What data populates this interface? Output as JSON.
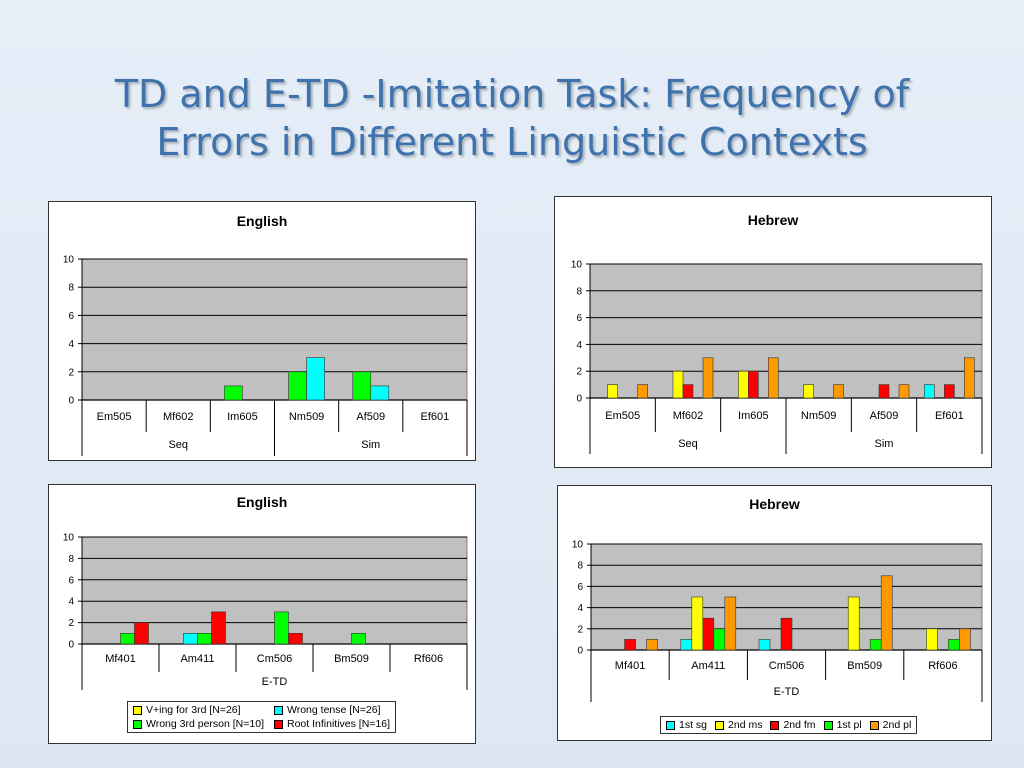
{
  "slide": {
    "title_line1": "TD and E-TD -Imitation Task: Frequency of",
    "title_line2": "Errors in Different Linguistic Contexts"
  },
  "chart_data": [
    {
      "type": "bar",
      "title": "English",
      "categories": [
        "Em505",
        "Mf602",
        "Im605",
        "Nm509",
        "Af509",
        "Ef601"
      ],
      "groups": [
        {
          "label": "Seq",
          "span": [
            0,
            2
          ]
        },
        {
          "label": "Sim",
          "span": [
            3,
            5
          ]
        }
      ],
      "ylim": [
        0,
        10
      ],
      "yticks": [
        0,
        2,
        4,
        6,
        8,
        10
      ],
      "grid": true,
      "series": [
        {
          "color": "#ffff00",
          "values": [
            0,
            0,
            0,
            0,
            0,
            0
          ]
        },
        {
          "color": "#00ff00",
          "values": [
            0,
            0,
            1,
            2,
            2,
            0
          ]
        },
        {
          "color": "#00ffff",
          "values": [
            0,
            0,
            0,
            3,
            1,
            0
          ]
        },
        {
          "color": "#ff0000",
          "values": [
            0,
            0,
            0,
            0,
            0,
            0
          ]
        }
      ]
    },
    {
      "type": "bar",
      "title": "Hebrew",
      "categories": [
        "Em505",
        "Mf602",
        "Im605",
        "Nm509",
        "Af509",
        "Ef601"
      ],
      "groups": [
        {
          "label": "Seq",
          "span": [
            0,
            2
          ]
        },
        {
          "label": "Sim",
          "span": [
            3,
            5
          ]
        }
      ],
      "ylim": [
        0,
        10
      ],
      "yticks": [
        0,
        2,
        4,
        6,
        8,
        10
      ],
      "grid": true,
      "series": [
        {
          "color": "#00ffff",
          "values": [
            0,
            0,
            0,
            0,
            0,
            1
          ]
        },
        {
          "color": "#ffff00",
          "values": [
            1,
            2,
            2,
            1,
            0,
            0
          ]
        },
        {
          "color": "#ff0000",
          "values": [
            0,
            1,
            2,
            0,
            1,
            1
          ]
        },
        {
          "color": "#00ff00",
          "values": [
            0,
            0,
            0,
            0,
            0,
            0
          ]
        },
        {
          "color": "#ff9900",
          "values": [
            1,
            3,
            3,
            1,
            1,
            3
          ]
        }
      ]
    },
    {
      "type": "bar",
      "title": "English",
      "categories": [
        "Mf401",
        "Am411",
        "Cm506",
        "Bm509",
        "Rf606"
      ],
      "groups": [
        {
          "label": "E-TD",
          "span": [
            0,
            4
          ]
        }
      ],
      "ylim": [
        0,
        10
      ],
      "yticks": [
        0,
        2,
        4,
        6,
        8,
        10
      ],
      "grid": true,
      "legend_position": "bottom",
      "series": [
        {
          "name": "V+ing for 3rd [N=26]",
          "color": "#ffff00",
          "values": [
            0,
            0,
            0,
            0,
            0
          ]
        },
        {
          "name": "Wrong tense [N=26]",
          "color": "#00ffff",
          "values": [
            0,
            1,
            0,
            0,
            0
          ]
        },
        {
          "name": "Wrong 3rd person [N=10]",
          "color": "#00ff00",
          "values": [
            1,
            1,
            3,
            1,
            0
          ]
        },
        {
          "name": "Root Infinitives [N=16]",
          "color": "#ff0000",
          "values": [
            2,
            3,
            1,
            0,
            0
          ]
        }
      ]
    },
    {
      "type": "bar",
      "title": "Hebrew",
      "categories": [
        "Mf401",
        "Am411",
        "Cm506",
        "Bm509",
        "Rf606"
      ],
      "groups": [
        {
          "label": "E-TD",
          "span": [
            0,
            4
          ]
        }
      ],
      "ylim": [
        0,
        10
      ],
      "yticks": [
        0,
        2,
        4,
        6,
        8,
        10
      ],
      "grid": true,
      "legend_position": "bottom",
      "series": [
        {
          "name": "1st sg",
          "color": "#00ffff",
          "values": [
            0,
            1,
            1,
            0,
            0
          ]
        },
        {
          "name": "2nd ms",
          "color": "#ffff00",
          "values": [
            0,
            5,
            0,
            5,
            2
          ]
        },
        {
          "name": "2nd fm",
          "color": "#ff0000",
          "values": [
            1,
            3,
            3,
            0,
            0
          ]
        },
        {
          "name": "1st pl",
          "color": "#00ff00",
          "values": [
            0,
            2,
            0,
            1,
            1
          ]
        },
        {
          "name": "2nd pl",
          "color": "#ff9900",
          "values": [
            1,
            5,
            0,
            7,
            2
          ]
        }
      ]
    }
  ]
}
